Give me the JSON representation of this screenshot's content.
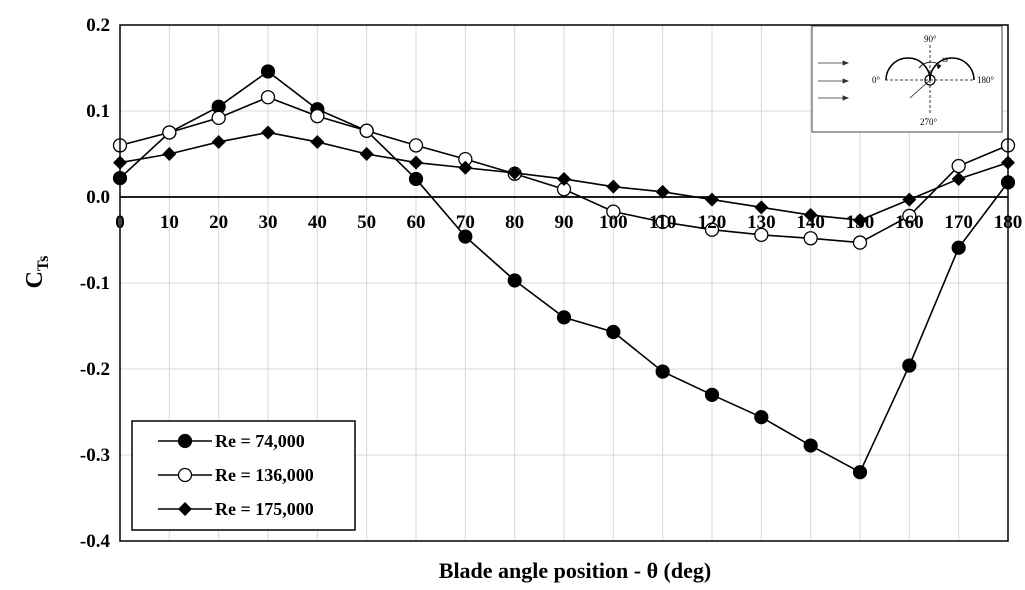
{
  "chart_data": {
    "type": "line",
    "xlabel": "Blade angle position - θ (deg)",
    "ylabel_main": "C",
    "ylabel_sub": "Ts",
    "x": [
      0,
      10,
      20,
      30,
      40,
      50,
      60,
      70,
      80,
      90,
      100,
      110,
      120,
      130,
      140,
      150,
      160,
      170,
      180
    ],
    "xlim": [
      0,
      180
    ],
    "ylim": [
      -0.4,
      0.2
    ],
    "x_ticks": [
      "0",
      "10",
      "20",
      "30",
      "40",
      "50",
      "60",
      "70",
      "80",
      "90",
      "100",
      "110",
      "120",
      "130",
      "140",
      "150",
      "160",
      "170",
      "180"
    ],
    "y_ticks": [
      {
        "value": 0.2,
        "label": "0.2"
      },
      {
        "value": 0.1,
        "label": "0.1"
      },
      {
        "value": 0.0,
        "label": "0.0"
      },
      {
        "value": -0.1,
        "label": "-0.1"
      },
      {
        "value": -0.2,
        "label": "-0.2"
      },
      {
        "value": -0.3,
        "label": "-0.3"
      },
      {
        "value": -0.4,
        "label": "-0.4"
      }
    ],
    "grid": true,
    "legend_position": "bottom-left",
    "series": [
      {
        "name": "Re = 74,000",
        "marker": "filled-circle",
        "values": [
          0.022,
          0.075,
          0.105,
          0.146,
          0.102,
          0.077,
          0.021,
          -0.046,
          -0.097,
          -0.14,
          -0.157,
          -0.203,
          -0.23,
          -0.256,
          -0.289,
          -0.32,
          -0.196,
          -0.059,
          0.017
        ]
      },
      {
        "name": "Re = 136,000",
        "marker": "open-circle",
        "values": [
          0.06,
          0.075,
          0.092,
          0.116,
          0.094,
          0.077,
          0.06,
          0.044,
          0.027,
          0.009,
          -0.017,
          -0.029,
          -0.038,
          -0.044,
          -0.048,
          -0.053,
          -0.022,
          0.036,
          0.06
        ]
      },
      {
        "name": "Re = 175,000",
        "marker": "filled-diamond",
        "values": [
          0.04,
          0.05,
          0.064,
          0.075,
          0.064,
          0.05,
          0.04,
          0.034,
          0.028,
          0.021,
          0.012,
          0.006,
          -0.003,
          -0.012,
          -0.021,
          -0.027,
          -0.003,
          0.021,
          0.04
        ]
      }
    ],
    "inset": {
      "labels": {
        "top": "90°",
        "left": "0°",
        "right": "180°",
        "bottom": "270°",
        "omega": "ω"
      }
    }
  }
}
